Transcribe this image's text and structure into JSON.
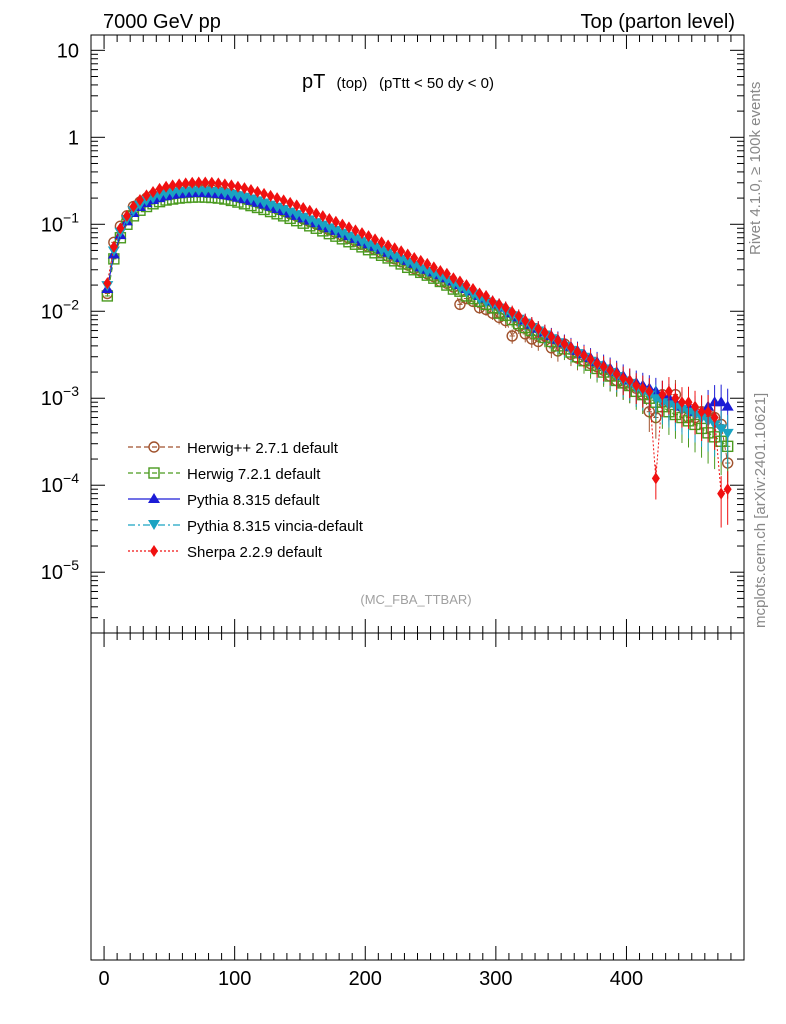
{
  "header": {
    "left": "7000 GeV pp",
    "right": "Top (parton level)"
  },
  "side": {
    "rivet": "Rivet 4.1.0, ≥ 100k events",
    "mcplots": "mcplots.cern.ch [arXiv:2401.10621]"
  },
  "title": {
    "main": "pT",
    "sub1": "(top)",
    "sub2": "(pTtt < 50 dy < 0)"
  },
  "analysis_tag": "(MC_FBA_TTBAR)",
  "legend": [
    {
      "label": "Herwig++ 2.7.1 default",
      "color": "#a0522d",
      "marker": "open-circle",
      "line": "dashed"
    },
    {
      "label": "Herwig 7.2.1 default",
      "color": "#4a9a1f",
      "marker": "open-square",
      "line": "dashed"
    },
    {
      "label": "Pythia 8.315 default",
      "color": "#1c1cd6",
      "marker": "triangle-up",
      "line": "solid"
    },
    {
      "label": "Pythia 8.315 vincia-default",
      "color": "#1aa3c2",
      "marker": "triangle-down",
      "line": "dashdot"
    },
    {
      "label": "Sherpa 2.2.9 default",
      "color": "#f01010",
      "marker": "diamond",
      "line": "dotted"
    }
  ],
  "chart_data": {
    "type": "scatter",
    "title": "pT (top) (pTtt < 50 dy < 0)",
    "xlabel": "",
    "ylabel": "",
    "xlim": [
      -10,
      490
    ],
    "ylim_log": [
      2e-06,
      15
    ],
    "yscale": "log",
    "x_ticks": [
      0,
      100,
      200,
      300,
      400
    ],
    "x_tick_labels": [
      "0",
      "100",
      "200",
      "300",
      "400"
    ],
    "y_ticks": [
      1e-05,
      0.0001,
      0.001,
      0.01,
      0.1,
      1,
      10
    ],
    "y_tick_labels": [
      {
        "base": "10",
        "exp": "−5"
      },
      {
        "base": "10",
        "exp": "−4"
      },
      {
        "base": "10",
        "exp": "−3"
      },
      {
        "base": "10",
        "exp": "−2"
      },
      {
        "base": "10",
        "exp": "−1"
      },
      {
        "base": "1",
        "exp": ""
      },
      {
        "base": "10",
        "exp": ""
      }
    ],
    "x": [
      2.5,
      7.5,
      12.5,
      17.5,
      22.5,
      27.5,
      32.5,
      37.5,
      42.5,
      47.5,
      52.5,
      57.5,
      62.5,
      67.5,
      72.5,
      77.5,
      82.5,
      87.5,
      92.5,
      97.5,
      102.5,
      107.5,
      112.5,
      117.5,
      122.5,
      127.5,
      132.5,
      137.5,
      142.5,
      147.5,
      152.5,
      157.5,
      162.5,
      167.5,
      172.5,
      177.5,
      182.5,
      187.5,
      192.5,
      197.5,
      202.5,
      207.5,
      212.5,
      217.5,
      222.5,
      227.5,
      232.5,
      237.5,
      242.5,
      247.5,
      252.5,
      257.5,
      262.5,
      267.5,
      272.5,
      277.5,
      282.5,
      287.5,
      292.5,
      297.5,
      302.5,
      307.5,
      312.5,
      317.5,
      322.5,
      327.5,
      332.5,
      337.5,
      342.5,
      347.5,
      352.5,
      357.5,
      362.5,
      367.5,
      372.5,
      377.5,
      382.5,
      387.5,
      392.5,
      397.5,
      402.5,
      407.5,
      412.5,
      417.5,
      422.5,
      427.5,
      432.5,
      437.5,
      442.5,
      447.5,
      452.5,
      457.5,
      462.5,
      467.5,
      472.5,
      477.5
    ],
    "series": [
      {
        "name": "Herwig++ 2.7.1 default",
        "values": [
          0.016,
          0.062,
          0.095,
          0.125,
          0.16,
          0.18,
          0.2,
          0.215,
          0.23,
          0.24,
          0.25,
          0.255,
          0.258,
          0.26,
          0.258,
          0.255,
          0.25,
          0.24,
          0.232,
          0.222,
          0.21,
          0.2,
          0.19,
          0.18,
          0.17,
          0.16,
          0.15,
          0.142,
          0.132,
          0.124,
          0.115,
          0.107,
          0.1,
          0.093,
          0.086,
          0.08,
          0.074,
          0.069,
          0.064,
          0.059,
          0.055,
          0.051,
          0.047,
          0.043,
          0.04,
          0.037,
          0.034,
          0.031,
          0.029,
          0.027,
          0.025,
          0.022,
          0.021,
          0.019,
          0.012,
          0.014,
          0.013,
          0.011,
          0.0105,
          0.0095,
          0.0085,
          0.0078,
          0.0052,
          0.0068,
          0.0055,
          0.0048,
          0.0045,
          0.0052,
          0.0038,
          0.0035,
          0.0042,
          0.0032,
          0.0029,
          0.0027,
          0.0025,
          0.0023,
          0.0021,
          0.0018,
          0.0016,
          0.0015,
          0.0014,
          0.0013,
          0.0011,
          0.0007,
          0.0006,
          0.0011,
          0.0009,
          0.0011,
          0.0008,
          0.0006,
          0.0006,
          0.0007,
          0.0007,
          0.0006,
          0.0005,
          0.00018
        ]
      },
      {
        "name": "Herwig 7.2.1 default",
        "values": [
          0.015,
          0.04,
          0.07,
          0.1,
          0.125,
          0.145,
          0.16,
          0.172,
          0.182,
          0.19,
          0.195,
          0.2,
          0.203,
          0.205,
          0.206,
          0.205,
          0.203,
          0.2,
          0.195,
          0.188,
          0.18,
          0.172,
          0.164,
          0.156,
          0.148,
          0.14,
          0.132,
          0.125,
          0.117,
          0.11,
          0.103,
          0.096,
          0.09,
          0.084,
          0.078,
          0.073,
          0.068,
          0.063,
          0.059,
          0.055,
          0.051,
          0.047,
          0.044,
          0.041,
          0.038,
          0.035,
          0.032,
          0.03,
          0.028,
          0.026,
          0.024,
          0.022,
          0.02,
          0.018,
          0.017,
          0.015,
          0.014,
          0.013,
          0.012,
          0.011,
          0.0095,
          0.009,
          0.008,
          0.0072,
          0.0065,
          0.006,
          0.0055,
          0.005,
          0.0045,
          0.004,
          0.0037,
          0.0034,
          0.003,
          0.0027,
          0.0024,
          0.0022,
          0.002,
          0.0018,
          0.0016,
          0.0015,
          0.0014,
          0.0012,
          0.0011,
          0.001,
          0.0009,
          0.0008,
          0.0007,
          0.00065,
          0.0006,
          0.00055,
          0.0005,
          0.00045,
          0.0004,
          0.00036,
          0.00032,
          0.00028
        ]
      },
      {
        "name": "Pythia 8.315 default",
        "values": [
          0.018,
          0.045,
          0.075,
          0.108,
          0.135,
          0.158,
          0.175,
          0.19,
          0.2,
          0.21,
          0.218,
          0.222,
          0.226,
          0.228,
          0.229,
          0.228,
          0.226,
          0.222,
          0.216,
          0.21,
          0.202,
          0.194,
          0.186,
          0.177,
          0.168,
          0.159,
          0.15,
          0.142,
          0.133,
          0.125,
          0.117,
          0.11,
          0.103,
          0.096,
          0.09,
          0.084,
          0.078,
          0.073,
          0.068,
          0.063,
          0.059,
          0.055,
          0.051,
          0.047,
          0.044,
          0.041,
          0.038,
          0.035,
          0.032,
          0.03,
          0.028,
          0.026,
          0.024,
          0.022,
          0.02,
          0.018,
          0.017,
          0.015,
          0.014,
          0.013,
          0.012,
          0.011,
          0.0095,
          0.0085,
          0.0078,
          0.007,
          0.0063,
          0.0057,
          0.0052,
          0.0047,
          0.0043,
          0.0039,
          0.0035,
          0.0032,
          0.0029,
          0.0026,
          0.0024,
          0.0022,
          0.002,
          0.0018,
          0.0016,
          0.0015,
          0.0014,
          0.0013,
          0.0012,
          0.0011,
          0.001,
          0.0009,
          0.0008,
          0.0008,
          0.0007,
          0.0007,
          0.0008,
          0.0009,
          0.0009,
          0.0008
        ]
      },
      {
        "name": "Pythia 8.315 vincia-default",
        "values": [
          0.02,
          0.05,
          0.082,
          0.115,
          0.145,
          0.168,
          0.188,
          0.202,
          0.215,
          0.225,
          0.232,
          0.238,
          0.242,
          0.244,
          0.245,
          0.244,
          0.241,
          0.237,
          0.231,
          0.224,
          0.216,
          0.207,
          0.198,
          0.188,
          0.178,
          0.168,
          0.159,
          0.15,
          0.14,
          0.131,
          0.122,
          0.114,
          0.106,
          0.099,
          0.092,
          0.086,
          0.08,
          0.074,
          0.069,
          0.064,
          0.059,
          0.055,
          0.051,
          0.047,
          0.043,
          0.04,
          0.037,
          0.034,
          0.031,
          0.029,
          0.027,
          0.025,
          0.023,
          0.021,
          0.019,
          0.017,
          0.016,
          0.014,
          0.013,
          0.012,
          0.011,
          0.01,
          0.009,
          0.0082,
          0.0074,
          0.0066,
          0.006,
          0.0054,
          0.0049,
          0.0044,
          0.004,
          0.0036,
          0.0033,
          0.003,
          0.0027,
          0.0024,
          0.0022,
          0.002,
          0.0018,
          0.0016,
          0.0015,
          0.0013,
          0.0012,
          0.0011,
          0.001,
          0.0009,
          0.00085,
          0.0008,
          0.00075,
          0.0007,
          0.00065,
          0.0006,
          0.00055,
          0.0005,
          0.00045,
          0.0004
        ]
      },
      {
        "name": "Sherpa 2.2.9 default",
        "values": [
          0.021,
          0.055,
          0.09,
          0.125,
          0.16,
          0.19,
          0.215,
          0.235,
          0.255,
          0.27,
          0.28,
          0.288,
          0.295,
          0.3,
          0.302,
          0.302,
          0.3,
          0.295,
          0.288,
          0.28,
          0.27,
          0.26,
          0.248,
          0.236,
          0.224,
          0.212,
          0.2,
          0.188,
          0.176,
          0.165,
          0.154,
          0.143,
          0.133,
          0.124,
          0.115,
          0.107,
          0.099,
          0.092,
          0.085,
          0.079,
          0.073,
          0.067,
          0.062,
          0.057,
          0.053,
          0.049,
          0.045,
          0.041,
          0.038,
          0.035,
          0.032,
          0.029,
          0.027,
          0.024,
          0.022,
          0.02,
          0.018,
          0.016,
          0.015,
          0.013,
          0.012,
          0.011,
          0.0098,
          0.0088,
          0.0078,
          0.0071,
          0.0063,
          0.0057,
          0.0051,
          0.0046,
          0.0042,
          0.0038,
          0.0034,
          0.0031,
          0.0028,
          0.0025,
          0.0023,
          0.0021,
          0.0019,
          0.0017,
          0.0016,
          0.0014,
          0.0013,
          0.0012,
          0.00012,
          0.0011,
          0.0012,
          0.001,
          0.0009,
          0.0009,
          0.0008,
          0.0007,
          0.0007,
          0.0006,
          8e-05,
          9e-05
        ]
      }
    ]
  }
}
